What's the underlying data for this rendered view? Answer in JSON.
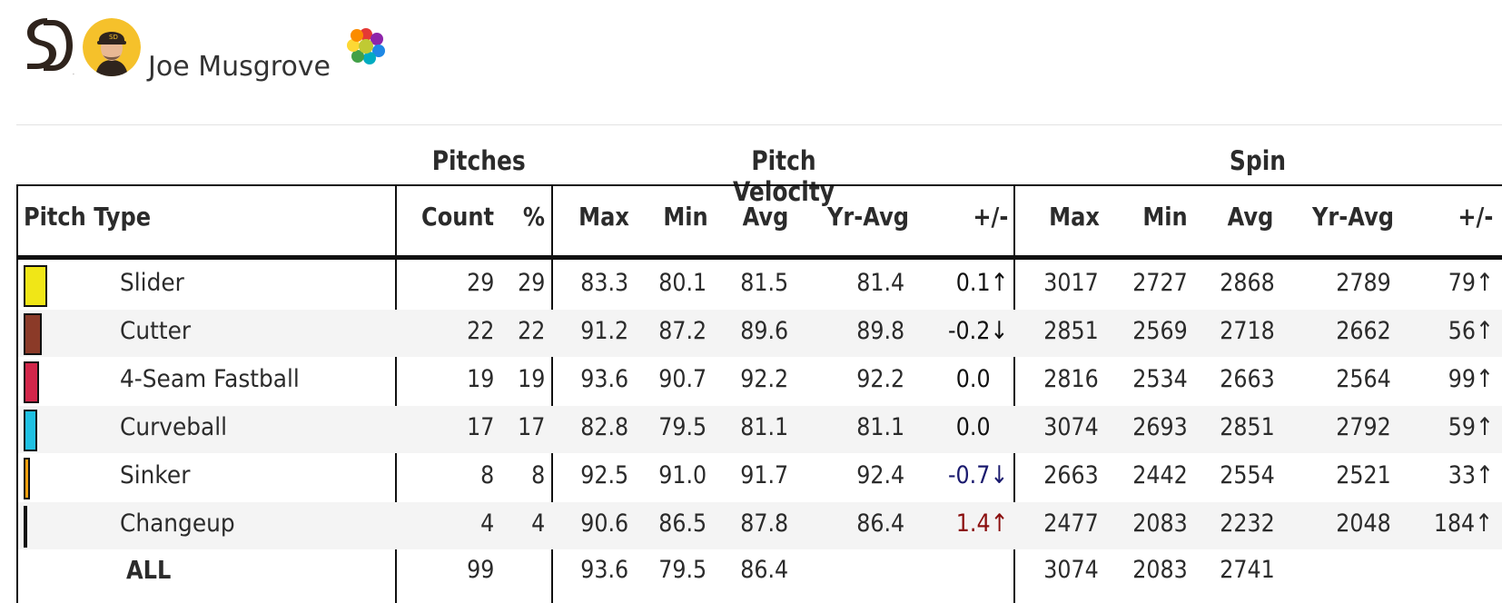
{
  "player": {
    "name": "Joe Musgrove",
    "team_logo_icon": "padres-sd-logo-icon",
    "avatar_icon": "player-headshot-icon",
    "flower_icon": "rainbow-flower-icon"
  },
  "groups": {
    "pitches": "Pitches",
    "velocity": "Pitch Velocity",
    "spin": "Spin"
  },
  "headers": {
    "pitch_type": "Pitch Type",
    "count": "Count",
    "pct": "%",
    "v_max": "Max",
    "v_min": "Min",
    "v_avg": "Avg",
    "v_yr": "Yr-Avg",
    "v_diff": "+/-",
    "s_max": "Max",
    "s_min": "Min",
    "s_avg": "Avg",
    "s_yr": "Yr-Avg",
    "s_diff": "+/-"
  },
  "rows": [
    {
      "type": "Slider",
      "color": "#f0e617",
      "share": 0.29,
      "count": "29",
      "pct": "29",
      "v_max": "83.3",
      "v_min": "80.1",
      "v_avg": "81.5",
      "v_yr": "81.4",
      "v_diff": "0.1",
      "v_dir": "up",
      "v_color": "#111111",
      "s_max": "3017",
      "s_min": "2727",
      "s_avg": "2868",
      "s_yr": "2789",
      "s_diff": "79",
      "s_dir": "up"
    },
    {
      "type": "Cutter",
      "color": "#8b3a28",
      "share": 0.22,
      "count": "22",
      "pct": "22",
      "v_max": "91.2",
      "v_min": "87.2",
      "v_avg": "89.6",
      "v_yr": "89.8",
      "v_diff": "-0.2",
      "v_dir": "down",
      "v_color": "#111111",
      "s_max": "2851",
      "s_min": "2569",
      "s_avg": "2718",
      "s_yr": "2662",
      "s_diff": "56",
      "s_dir": "up"
    },
    {
      "type": "4-Seam Fastball",
      "color": "#d2264a",
      "share": 0.19,
      "count": "19",
      "pct": "19",
      "v_max": "93.6",
      "v_min": "90.7",
      "v_avg": "92.2",
      "v_yr": "92.2",
      "v_diff": "0.0",
      "v_dir": "",
      "v_color": "#111111",
      "s_max": "2816",
      "s_min": "2534",
      "s_avg": "2663",
      "s_yr": "2564",
      "s_diff": "99",
      "s_dir": "up"
    },
    {
      "type": "Curveball",
      "color": "#1fc1e3",
      "share": 0.17,
      "count": "17",
      "pct": "17",
      "v_max": "82.8",
      "v_min": "79.5",
      "v_avg": "81.1",
      "v_yr": "81.1",
      "v_diff": "0.0",
      "v_dir": "",
      "v_color": "#111111",
      "s_max": "3074",
      "s_min": "2693",
      "s_avg": "2851",
      "s_yr": "2792",
      "s_diff": "59",
      "s_dir": "up"
    },
    {
      "type": "Sinker",
      "color": "#f3a10e",
      "share": 0.08,
      "count": "8",
      "pct": "8",
      "v_max": "92.5",
      "v_min": "91.0",
      "v_avg": "91.7",
      "v_yr": "92.4",
      "v_diff": "-0.7",
      "v_dir": "down",
      "v_color": "#1a1a6e",
      "s_max": "2663",
      "s_min": "2442",
      "s_avg": "2554",
      "s_yr": "2521",
      "s_diff": "33",
      "s_dir": "up"
    },
    {
      "type": "Changeup",
      "color": "#2a5fb0",
      "share": 0.04,
      "count": "4",
      "pct": "4",
      "v_max": "90.6",
      "v_min": "86.5",
      "v_avg": "87.8",
      "v_yr": "86.4",
      "v_diff": "1.4",
      "v_dir": "up",
      "v_color": "#8b1010",
      "s_max": "2477",
      "s_min": "2083",
      "s_avg": "2232",
      "s_yr": "2048",
      "s_diff": "184",
      "s_dir": "up"
    }
  ],
  "total": {
    "label": "ALL",
    "count": "99",
    "v_max": "93.6",
    "v_min": "79.5",
    "v_avg": "86.4",
    "s_max": "3074",
    "s_min": "2083",
    "s_avg": "2741"
  },
  "colors": {
    "stripe": "#f4f4f4",
    "line": "#111111"
  }
}
